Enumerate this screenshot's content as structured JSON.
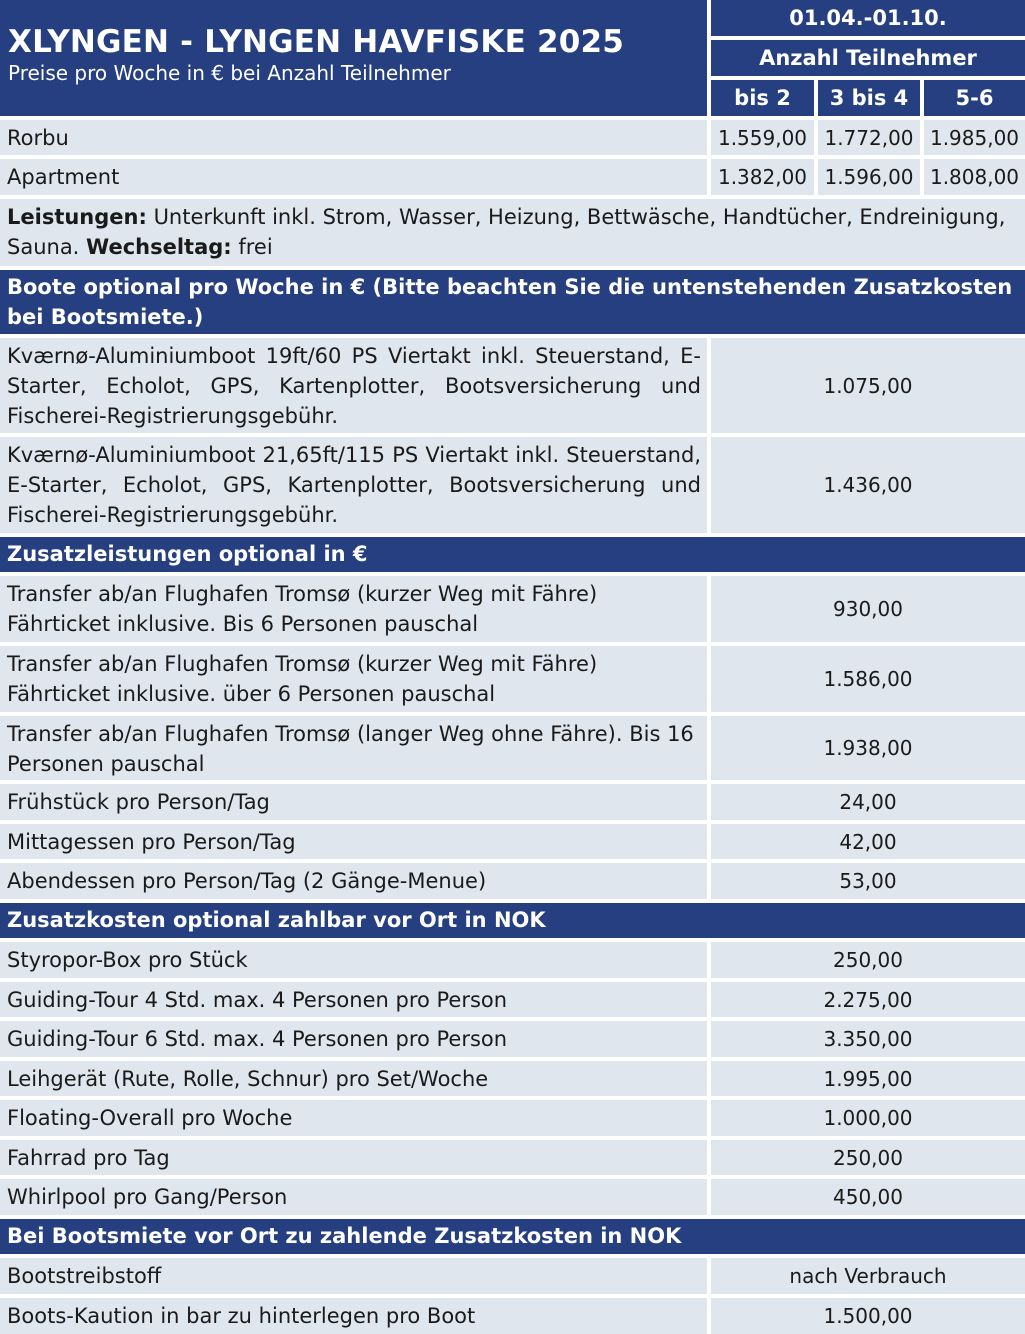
{
  "header": {
    "title": "XLYNGEN - LYNGEN HAVFISKE 2025",
    "subtitle": "Preise pro Woche in € bei Anzahl Teilnehmer",
    "season": "01.04.-01.10.",
    "group_label": "Anzahl Teilnehmer",
    "columns": [
      "bis 2",
      "3 bis 4",
      "5-6"
    ]
  },
  "accommodation": [
    {
      "name": "Rorbu",
      "prices": [
        "1.559,00",
        "1.772,00",
        "1.985,00"
      ]
    },
    {
      "name": "Apartment",
      "prices": [
        "1.382,00",
        "1.596,00",
        "1.808,00"
      ]
    }
  ],
  "services": {
    "label": "Leistungen:",
    "text": " Unterkunft inkl. Strom, Wasser, Heizung, Bettwäsche, Handtücher, Endreini­gung, Sauna. ",
    "changeover_label": "Wechseltag:",
    "changeover_value": " frei"
  },
  "boats": {
    "title": "Boote optional pro Woche in € (Bitte beachten Sie die untenstehenden Zusatzkosten bei Bootsmiete.)",
    "items": [
      {
        "text": "Kværnø-Aluminiumboot 19ft/60 PS Viertakt inkl. Steuerstand, E-Starter, Echolot, GPS, Kartenplotter, Bootsversicherung und Fischerei-Registrierungsgebühr.",
        "price": "1.075,00"
      },
      {
        "text": "Kværnø-Aluminiumboot 21,65ft/115 PS Viertakt inkl. Steuer­stand, E-Starter, Echolot, GPS, Kartenplotter, Bootsversicherung und Fischerei-Registrierungsgebühr.",
        "price": "1.436,00"
      }
    ]
  },
  "extras": {
    "title": "Zusatzleistungen optional in €",
    "items": [
      {
        "text": "Transfer ab/an Flughafen Tromsø (kurzer Weg mit Fähre) Fährticket inklusive. Bis 6 Personen pauschal",
        "price": "930,00"
      },
      {
        "text": "Transfer ab/an Flughafen Tromsø (kurzer Weg mit Fähre) Fährticket inklusive. über 6 Personen pauschal",
        "price": "1.586,00"
      },
      {
        "text": "Transfer ab/an Flughafen Tromsø (langer Weg ohne Fähre). Bis 16 Personen pauschal",
        "price": "1.938,00"
      },
      {
        "text": "Frühstück pro Person/Tag",
        "price": "24,00"
      },
      {
        "text": "Mittagessen pro Person/Tag",
        "price": "42,00"
      },
      {
        "text": "Abendessen pro Person/Tag (2 Gänge-Menue)",
        "price": "53,00"
      }
    ]
  },
  "local_costs": {
    "title": "Zusatzkosten optional zahlbar vor Ort in NOK",
    "items": [
      {
        "text": "Styropor-Box pro Stück",
        "price": "250,00"
      },
      {
        "text": "Guiding-Tour 4 Std. max. 4 Personen pro Person",
        "price": "2.275,00"
      },
      {
        "text": "Guiding-Tour 6 Std. max. 4 Personen pro Person",
        "price": "3.350,00"
      },
      {
        "text": "Leihgerät (Rute, Rolle, Schnur) pro Set/Woche",
        "price": "1.995,00"
      },
      {
        "text": "Floating-Overall pro Woche",
        "price": "1.000,00"
      },
      {
        "text": "Fahrrad pro Tag",
        "price": "250,00"
      },
      {
        "text": "Whirlpool pro Gang/Person",
        "price": "450,00"
      }
    ]
  },
  "boat_costs": {
    "title": "Bei Bootsmiete vor Ort zu zahlende Zusatzkosten in NOK",
    "items": [
      {
        "text": "Bootstreibstoff",
        "price": "nach Verbrauch"
      },
      {
        "text": "Boots-Kaution in bar zu hinterlegen pro Boot",
        "price": "1.500,00"
      }
    ]
  }
}
